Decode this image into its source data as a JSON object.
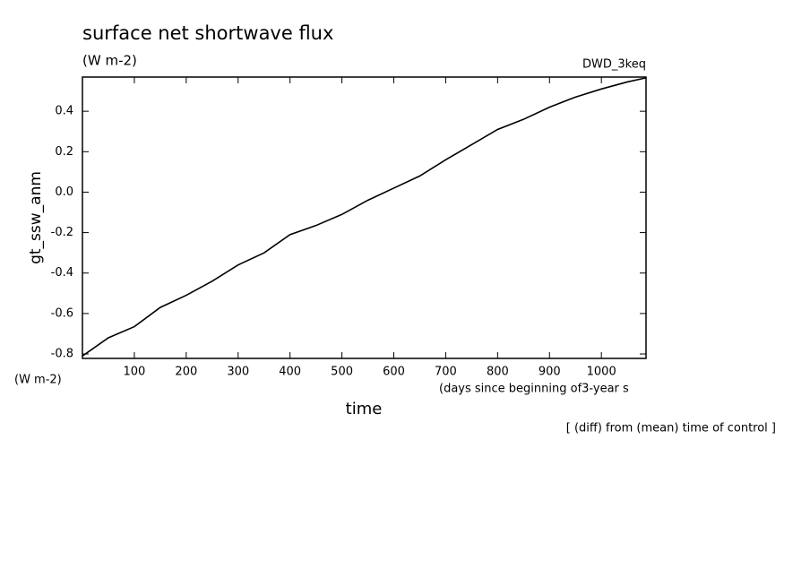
{
  "chart_data": {
    "type": "line",
    "title": "surface net shortwave flux",
    "subtitle": "(W m-2)",
    "run_label": "DWD_3keq",
    "y_label": "gt_ssw_anm",
    "y_unit": "(W m-2)",
    "x_unit": "(days since beginning of3-year s",
    "x_label": "time",
    "note": "[ (diff) from (mean) time of control ]",
    "x": [
      0,
      50,
      100,
      150,
      200,
      250,
      300,
      350,
      400,
      450,
      500,
      550,
      600,
      650,
      700,
      750,
      800,
      850,
      900,
      950,
      1000,
      1050,
      1086
    ],
    "series": [
      {
        "color": "#000000",
        "values": [
          -0.81,
          -0.72,
          -0.665,
          -0.57,
          -0.51,
          -0.44,
          -0.36,
          -0.3,
          -0.21,
          -0.165,
          -0.11,
          -0.04,
          0.02,
          0.08,
          0.16,
          0.235,
          0.31,
          0.36,
          0.42,
          0.47,
          0.51,
          0.545,
          0.565
        ]
      }
    ],
    "xlim": [
      0,
      1086
    ],
    "ylim": [
      -0.822,
      0.569
    ],
    "xticks": [
      100,
      200,
      300,
      400,
      500,
      600,
      700,
      800,
      900,
      1000
    ],
    "yticks": [
      -0.8,
      -0.6,
      -0.4,
      -0.2,
      {
        "value": 0,
        "label": "0.0"
      },
      0.2,
      0.4
    ]
  }
}
